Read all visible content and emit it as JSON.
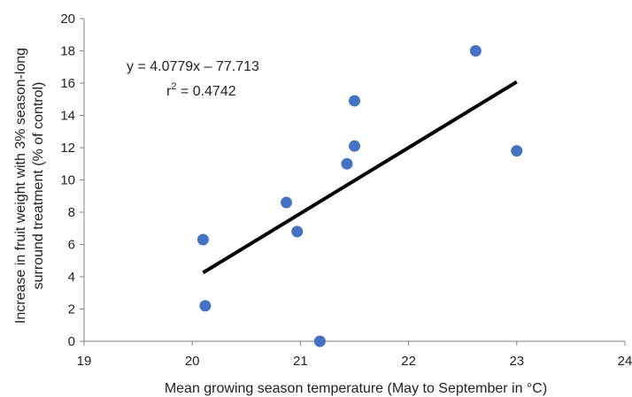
{
  "chart_data": {
    "type": "scatter",
    "title": "",
    "xlabel": "Mean growing season temperature (May to September in °C)",
    "ylabel_lines": [
      "Increase in fruit weight with 3% season-long",
      "surround treatment (% of control)"
    ],
    "xlim": [
      19,
      24
    ],
    "ylim": [
      0,
      20
    ],
    "xticks": [
      19,
      20,
      21,
      22,
      23,
      24
    ],
    "yticks": [
      0,
      2,
      4,
      6,
      8,
      10,
      12,
      14,
      16,
      18,
      20
    ],
    "grid": false,
    "legend": "none",
    "series": [
      {
        "points": [
          {
            "x": 20.1,
            "y": 6.3
          },
          {
            "x": 20.12,
            "y": 2.2
          },
          {
            "x": 20.87,
            "y": 8.6
          },
          {
            "x": 20.97,
            "y": 6.8
          },
          {
            "x": 21.18,
            "y": 0.0
          },
          {
            "x": 21.43,
            "y": 11.0
          },
          {
            "x": 21.5,
            "y": 14.9
          },
          {
            "x": 21.5,
            "y": 12.1
          },
          {
            "x": 22.62,
            "y": 18.0
          },
          {
            "x": 23.0,
            "y": 11.8
          }
        ],
        "color": "#4472C4"
      }
    ],
    "trendline": {
      "slope": 4.0779,
      "intercept": -77.713,
      "x_range": [
        20.1,
        23.0
      ],
      "color": "#000000"
    },
    "annotations": {
      "equation": "y = 4.0779x – 77.713",
      "r2_prefix": "r",
      "r2_sup": "2",
      "r2_value": " = 0.4742"
    }
  }
}
